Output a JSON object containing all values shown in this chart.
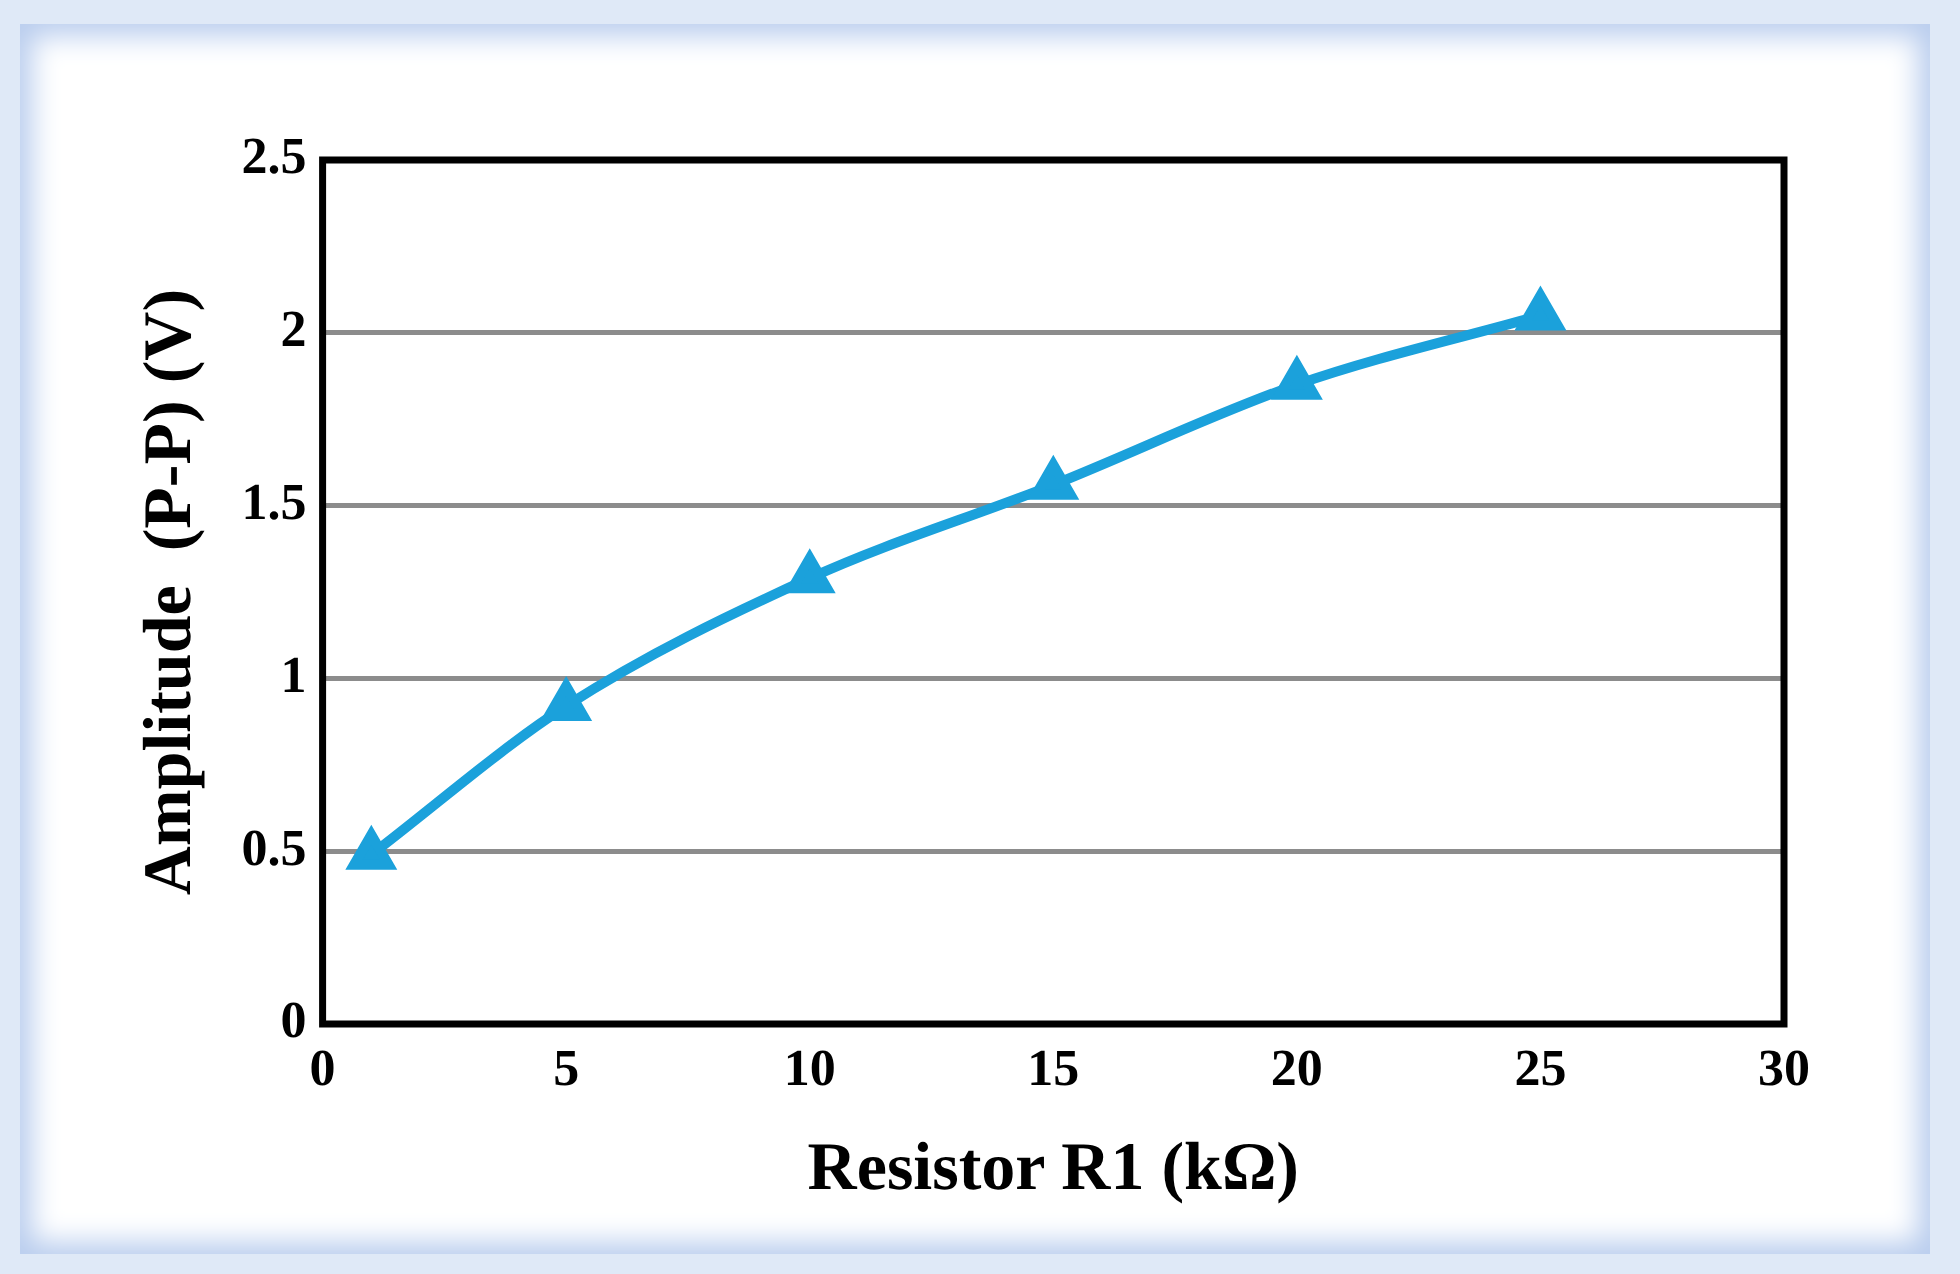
{
  "chart_data": {
    "type": "line",
    "xlabel": "Resistor R1 (kΩ)",
    "ylabel": "Amplitude  (P-P) (V)",
    "x": [
      1,
      5,
      10,
      15,
      20,
      25
    ],
    "series": [
      {
        "color": "#1ba1db",
        "values": [
          0.49,
          0.92,
          1.29,
          1.56,
          1.85,
          2.05
        ]
      }
    ],
    "xlim": [
      0,
      30
    ],
    "xticks": [
      0,
      5,
      10,
      15,
      20,
      25,
      30
    ],
    "ylim": [
      0,
      2.5
    ],
    "yticks": [
      0,
      0.5,
      1,
      1.5,
      2,
      2.5
    ],
    "grid": "y",
    "legend": false,
    "marker": "triangle",
    "line_style": "solid"
  }
}
